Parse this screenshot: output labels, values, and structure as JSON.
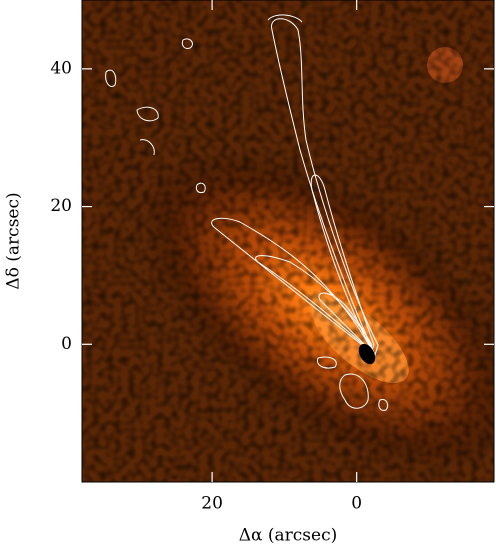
{
  "chart_data": {
    "type": "image",
    "x_label": "Δα (arcsec)",
    "y_label": "Δδ (arcsec)",
    "xlim": [
      38,
      -19
    ],
    "ylim": [
      -20,
      50
    ],
    "xticks": [
      20,
      0
    ],
    "yticks": [
      0,
      20,
      40
    ]
  }
}
